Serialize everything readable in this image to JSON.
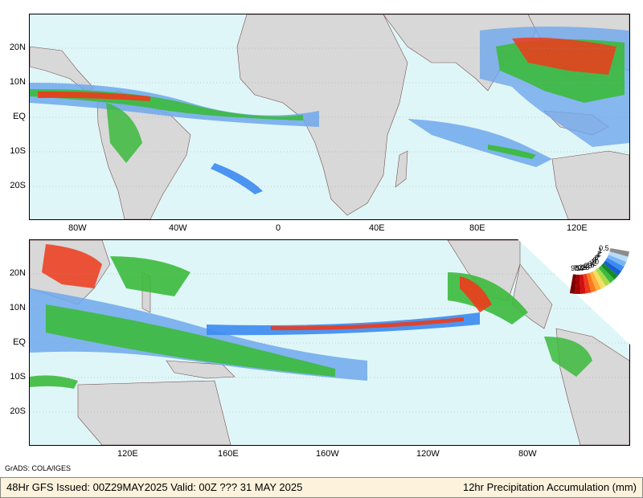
{
  "top_panel": {
    "lat_labels": [
      "20N",
      "10N",
      "EQ",
      "10S",
      "20S"
    ],
    "lon_labels": [
      "80W",
      "40W",
      "0",
      "40E",
      "80E",
      "120E"
    ]
  },
  "bottom_panel": {
    "lat_labels": [
      "20N",
      "10N",
      "EQ",
      "10S",
      "20S"
    ],
    "lon_labels": [
      "120E",
      "160E",
      "160W",
      "120W",
      "80W"
    ]
  },
  "credit": "GrADS: COLA/IGES",
  "footer": {
    "left": "48Hr GFS Issued: 00Z29MAY2025 Valid: 00Z ??? 31 MAY 2025",
    "right": "12hr Precipitation Accumulation (mm)"
  },
  "legend": {
    "ticks": [
      "90",
      "70",
      "50",
      "35",
      "25",
      "20",
      "15",
      "12",
      "10",
      "8",
      "6",
      "4",
      "2",
      "1",
      "0.5"
    ],
    "colors": [
      "#7a0000",
      "#a50000",
      "#d01010",
      "#ee3a1a",
      "#ff7a1c",
      "#ffb040",
      "#f4e060",
      "#a8dc4a",
      "#3cba3c",
      "#158a2a",
      "#1a5fd0",
      "#3b8bf0",
      "#7ab6f5",
      "#b8dcf8",
      "#8c8c8c"
    ]
  },
  "colors": {
    "ocean": "#dff6f8",
    "land": "#d8d8d8",
    "border": "#7a4e4e"
  }
}
